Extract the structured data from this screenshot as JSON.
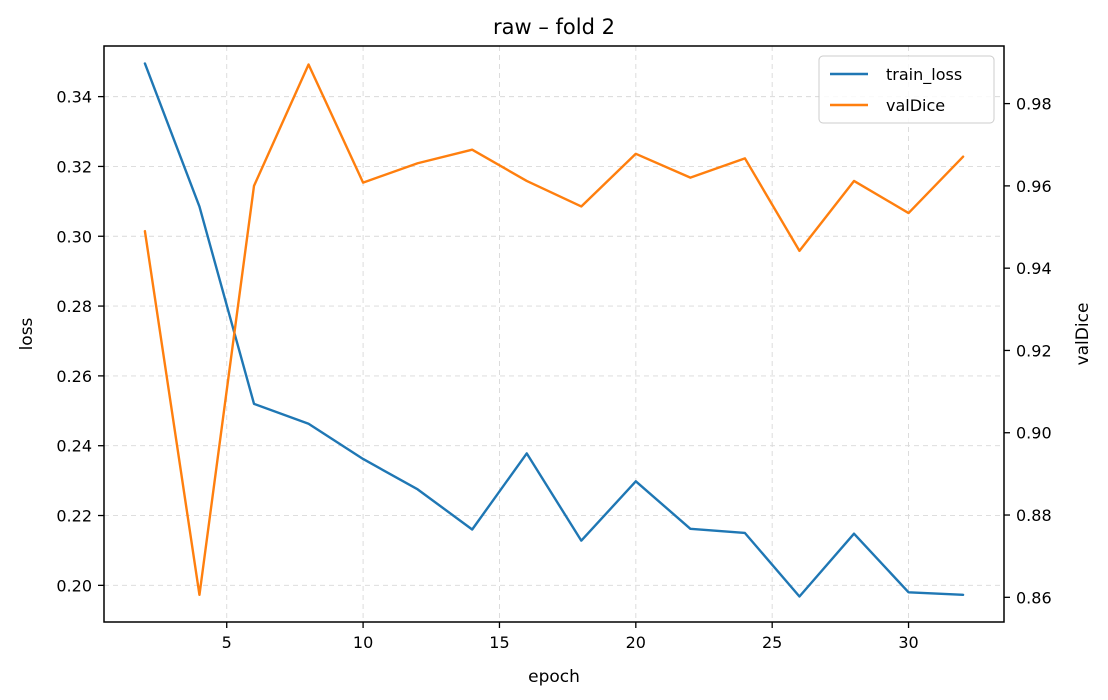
{
  "chart_data": {
    "type": "line",
    "title": "raw – fold 2",
    "xlabel": "epoch",
    "ylabel": "loss",
    "y2label": "valDice",
    "x": [
      2,
      4,
      6,
      8,
      10,
      12,
      14,
      16,
      18,
      20,
      22,
      24,
      26,
      28,
      30,
      32
    ],
    "xlim": [
      0.5,
      33.5
    ],
    "ylim": [
      0.1895,
      0.3545
    ],
    "y2lim": [
      0.854,
      0.994
    ],
    "xticks": [
      5,
      10,
      15,
      20,
      25,
      30
    ],
    "yticks": [
      0.2,
      0.22,
      0.24,
      0.26,
      0.28,
      0.3,
      0.32,
      0.34
    ],
    "y2ticks": [
      0.86,
      0.88,
      0.9,
      0.92,
      0.94,
      0.96,
      0.98
    ],
    "grid": true,
    "legend": "top-right",
    "series": [
      {
        "name": "train_loss",
        "axis": "left",
        "color": "#1f77b4",
        "values": [
          0.3495,
          0.3085,
          0.252,
          0.2463,
          0.2362,
          0.2275,
          0.216,
          0.2378,
          0.2128,
          0.2298,
          0.2162,
          0.215,
          0.1968,
          0.2148,
          0.198,
          0.1973
        ]
      },
      {
        "name": "valDice",
        "axis": "right",
        "color": "#ff7f0e",
        "values": [
          0.949,
          0.8606,
          0.96,
          0.9895,
          0.9608,
          0.9655,
          0.9688,
          0.9612,
          0.955,
          0.9678,
          0.962,
          0.9667,
          0.9442,
          0.9612,
          0.9534,
          0.9671
        ]
      }
    ]
  }
}
